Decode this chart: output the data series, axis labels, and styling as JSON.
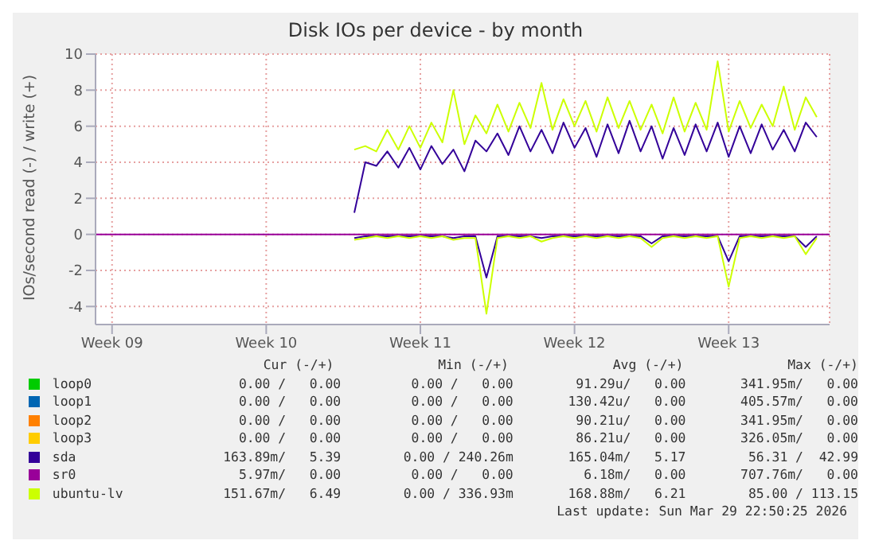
{
  "chart_data": {
    "type": "line",
    "title": "Disk IOs per device - by month",
    "ylabel": "IOs/second read (-) / write (+)",
    "xlim": [
      "2026-02-25T18:00",
      "2026-03-31T02:00"
    ],
    "xticks": [
      {
        "value": "2026-02-26T12:00",
        "label": "Week 09"
      },
      {
        "value": "2026-03-05T12:00",
        "label": "Week 10"
      },
      {
        "value": "2026-03-12T12:00",
        "label": "Week 11"
      },
      {
        "value": "2026-03-19T12:00",
        "label": "Week 12"
      },
      {
        "value": "2026-03-26T12:00",
        "label": "Week 13"
      }
    ],
    "ylim": [
      -5,
      10
    ],
    "yticks": [
      -4,
      -2,
      0,
      2,
      4,
      6,
      8,
      10
    ],
    "grid": true,
    "legend": "bottom",
    "marker": "none",
    "line_style": "solid",
    "x": [
      "2026-03-09T12:00",
      "2026-03-10T00:00",
      "2026-03-10T12:00",
      "2026-03-11T00:00",
      "2026-03-11T12:00",
      "2026-03-12T00:00",
      "2026-03-12T12:00",
      "2026-03-13T00:00",
      "2026-03-13T12:00",
      "2026-03-14T00:00",
      "2026-03-14T12:00",
      "2026-03-15T00:00",
      "2026-03-15T12:00",
      "2026-03-16T00:00",
      "2026-03-16T12:00",
      "2026-03-17T00:00",
      "2026-03-17T12:00",
      "2026-03-18T00:00",
      "2026-03-18T12:00",
      "2026-03-19T00:00",
      "2026-03-19T12:00",
      "2026-03-20T00:00",
      "2026-03-20T12:00",
      "2026-03-21T00:00",
      "2026-03-21T12:00",
      "2026-03-22T00:00",
      "2026-03-22T12:00",
      "2026-03-23T00:00",
      "2026-03-23T12:00",
      "2026-03-24T00:00",
      "2026-03-24T12:00",
      "2026-03-25T00:00",
      "2026-03-25T12:00",
      "2026-03-26T00:00",
      "2026-03-26T12:00",
      "2026-03-27T00:00",
      "2026-03-27T12:00",
      "2026-03-28T00:00",
      "2026-03-28T12:00",
      "2026-03-29T00:00",
      "2026-03-29T12:00",
      "2026-03-30T00:00",
      "2026-03-30T12:00"
    ],
    "series": [
      {
        "name": "loop0",
        "color": "#00cc00",
        "values": [
          null,
          null,
          null,
          null,
          null,
          null,
          null,
          null,
          null,
          null,
          null,
          null,
          null,
          null,
          null,
          null,
          null,
          null,
          null,
          null,
          null,
          null,
          null,
          null,
          null,
          null,
          null,
          null,
          null,
          null,
          null,
          null,
          null,
          null,
          null,
          null,
          null,
          null,
          null,
          null,
          null,
          null,
          null
        ]
      },
      {
        "name": "loop1",
        "color": "#0066b3",
        "values": [
          null,
          null,
          null,
          null,
          null,
          null,
          null,
          null,
          null,
          null,
          null,
          null,
          null,
          null,
          null,
          null,
          null,
          null,
          null,
          null,
          null,
          null,
          null,
          null,
          null,
          null,
          null,
          null,
          null,
          null,
          null,
          null,
          null,
          null,
          null,
          null,
          null,
          null,
          null,
          null,
          null,
          null,
          null
        ]
      },
      {
        "name": "loop2",
        "color": "#ff8000",
        "values": [
          null,
          null,
          null,
          null,
          null,
          null,
          null,
          null,
          null,
          null,
          null,
          null,
          null,
          null,
          null,
          null,
          null,
          null,
          null,
          null,
          null,
          null,
          null,
          null,
          null,
          null,
          null,
          null,
          null,
          null,
          null,
          null,
          null,
          null,
          null,
          null,
          null,
          null,
          null,
          null,
          null,
          null,
          null
        ]
      },
      {
        "name": "loop3",
        "color": "#ffcc00",
        "values": [
          null,
          null,
          null,
          null,
          null,
          null,
          null,
          null,
          null,
          null,
          null,
          null,
          null,
          null,
          null,
          null,
          null,
          null,
          null,
          null,
          null,
          null,
          null,
          null,
          null,
          null,
          null,
          null,
          null,
          null,
          null,
          null,
          null,
          null,
          null,
          null,
          null,
          null,
          null,
          null,
          null,
          null,
          null
        ]
      },
      {
        "name": "sda",
        "color": "#330099",
        "values": [
          1.2,
          4.0,
          3.8,
          4.6,
          3.7,
          4.8,
          3.6,
          4.9,
          3.9,
          4.7,
          3.5,
          5.2,
          4.6,
          5.6,
          4.4,
          6.0,
          4.6,
          5.8,
          4.5,
          6.2,
          4.8,
          5.9,
          4.3,
          6.1,
          4.5,
          6.3,
          4.6,
          6.0,
          4.2,
          5.9,
          4.4,
          6.1,
          4.6,
          6.2,
          4.3,
          6.0,
          4.5,
          6.1,
          4.7,
          5.8,
          4.6,
          6.2,
          5.4
        ]
      },
      {
        "color": "#330099",
        "values": [
          -0.2,
          -0.1,
          -0.1,
          -0.1,
          -0.1,
          -0.1,
          -0.1,
          -0.1,
          -0.1,
          -0.2,
          -0.1,
          -0.1,
          -2.4,
          -0.1,
          -0.1,
          -0.1,
          -0.1,
          -0.2,
          -0.1,
          -0.1,
          -0.1,
          -0.1,
          -0.1,
          -0.1,
          -0.1,
          -0.1,
          -0.1,
          -0.5,
          -0.1,
          -0.1,
          -0.1,
          -0.1,
          -0.1,
          -0.1,
          -1.5,
          -0.1,
          -0.1,
          -0.1,
          -0.1,
          -0.1,
          -0.1,
          -0.7,
          -0.1
        ]
      },
      {
        "name": "sr0",
        "color": "#990099",
        "x": [
          "2026-02-25T18:00",
          "2026-03-31T02:00"
        ],
        "values": [
          0,
          0
        ]
      },
      {
        "name": "ubuntu-lv",
        "color": "#ccff00",
        "values": [
          4.7,
          4.9,
          4.6,
          5.8,
          4.7,
          6.0,
          4.8,
          6.2,
          5.1,
          8.0,
          5.0,
          6.6,
          5.6,
          7.2,
          5.7,
          7.3,
          5.9,
          8.4,
          5.8,
          7.5,
          6.0,
          7.4,
          5.7,
          7.6,
          5.9,
          7.4,
          5.8,
          7.2,
          5.6,
          7.6,
          5.7,
          7.3,
          5.8,
          9.6,
          5.7,
          7.4,
          5.9,
          7.2,
          6.0,
          8.2,
          5.8,
          7.6,
          6.5
        ]
      },
      {
        "color": "#ccff00",
        "values": [
          -0.3,
          -0.2,
          -0.1,
          -0.2,
          -0.1,
          -0.2,
          -0.1,
          -0.2,
          -0.1,
          -0.3,
          -0.2,
          -0.2,
          -4.4,
          -0.2,
          -0.1,
          -0.2,
          -0.1,
          -0.4,
          -0.2,
          -0.1,
          -0.2,
          -0.1,
          -0.2,
          -0.1,
          -0.2,
          -0.1,
          -0.2,
          -0.7,
          -0.2,
          -0.1,
          -0.2,
          -0.1,
          -0.2,
          -0.1,
          -2.9,
          -0.2,
          -0.1,
          -0.2,
          -0.1,
          -0.2,
          -0.1,
          -1.1,
          -0.2
        ]
      }
    ],
    "annotations": [
      "Cur (-/+)",
      "Min (-/+)",
      "Avg (-/+)",
      "Max (-/+)",
      "0.00 /   0.00",
      "0.00 /   0.00",
      "91.29u/   0.00",
      "341.95m/   0.00",
      "0.00 /   0.00",
      "0.00 /   0.00",
      "130.42u/   0.00",
      "405.57m/   0.00",
      "0.00 /   0.00",
      "0.00 /   0.00",
      "90.21u/   0.00",
      "341.95m/   0.00",
      "0.00 /   0.00",
      "0.00 /   0.00",
      "86.21u/   0.00",
      "326.05m/   0.00",
      "163.89m/   5.39",
      "0.00 / 240.26m",
      "165.04m/   5.17",
      "56.31 /  42.99",
      "5.97m/   0.00",
      "0.00 /   0.00",
      "6.18m/   0.00",
      "707.76m/   0.00",
      "151.67m/   6.49",
      "0.00 / 336.93m",
      "168.88m/   6.21",
      "85.00 / 113.15",
      "Last update: Sun Mar 29 22:50:25 2026"
    ]
  }
}
